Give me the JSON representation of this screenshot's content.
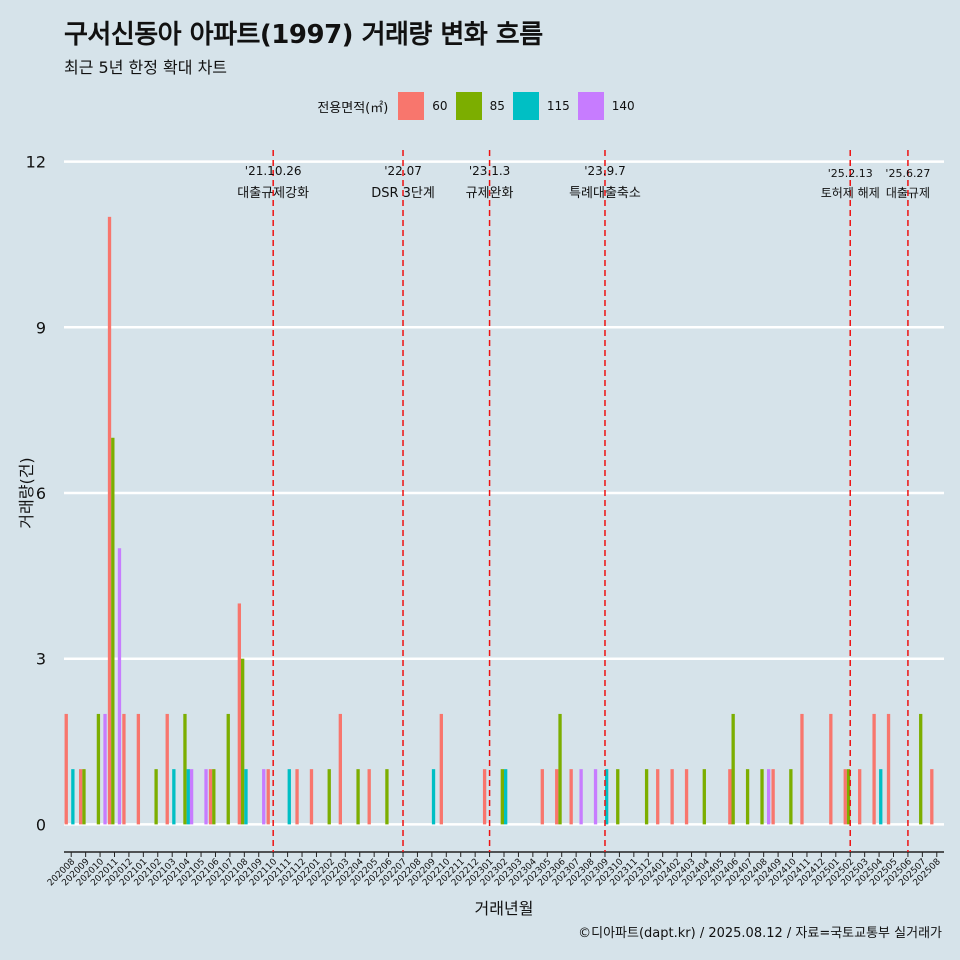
{
  "title": "구서신동아 아파트(1997) 거래량 변화 흐름",
  "subtitle": "최근 5년 한정 확대 차트",
  "legend_title": "전용면적(㎡)",
  "caption": "©디아파트(dapt.kr) / 2025.08.12 / 자료=국토교통부 실거래가",
  "chart_data": {
    "type": "bar",
    "xlabel": "거래년월",
    "ylabel": "거래량(건)",
    "ylim": [
      -0.5,
      12.5
    ],
    "yticks": [
      0,
      3,
      6,
      9,
      12
    ],
    "grid": true,
    "legend_position": "top",
    "categories": [
      "202008",
      "202009",
      "202010",
      "202011",
      "202012",
      "202101",
      "202102",
      "202103",
      "202104",
      "202105",
      "202106",
      "202107",
      "202108",
      "202109",
      "202110",
      "202111",
      "202112",
      "202201",
      "202202",
      "202203",
      "202204",
      "202205",
      "202206",
      "202207",
      "202208",
      "202209",
      "202210",
      "202211",
      "202212",
      "202301",
      "202302",
      "202303",
      "202304",
      "202305",
      "202306",
      "202307",
      "202308",
      "202309",
      "202310",
      "202311",
      "202312",
      "202401",
      "202402",
      "202403",
      "202404",
      "202405",
      "202406",
      "202407",
      "202408",
      "202409",
      "202410",
      "202411",
      "202412",
      "202501",
      "202502",
      "202503",
      "202504",
      "202505",
      "202506",
      "202507",
      "202508"
    ],
    "series": [
      {
        "name": "60",
        "color": "#f8766d",
        "values": [
          2,
          1,
          0,
          11,
          2,
          2,
          0,
          2,
          0,
          0,
          1,
          0,
          4,
          0,
          1,
          0,
          1,
          1,
          0,
          2,
          0,
          1,
          0,
          0,
          0,
          0,
          2,
          0,
          0,
          1,
          0,
          0,
          0,
          1,
          1,
          1,
          0,
          0,
          0,
          0,
          0,
          1,
          1,
          1,
          0,
          0,
          1,
          0,
          0,
          1,
          0,
          2,
          0,
          2,
          1,
          1,
          2,
          2,
          0,
          0,
          1
        ]
      },
      {
        "name": "85",
        "color": "#7cae00",
        "values": [
          0,
          1,
          2,
          7,
          0,
          0,
          1,
          0,
          2,
          0,
          1,
          2,
          3,
          0,
          0,
          0,
          0,
          0,
          1,
          0,
          1,
          0,
          1,
          0,
          0,
          0,
          0,
          0,
          0,
          0,
          1,
          0,
          0,
          0,
          2,
          0,
          0,
          0,
          1,
          0,
          1,
          0,
          0,
          0,
          1,
          0,
          2,
          1,
          1,
          0,
          1,
          0,
          0,
          0,
          1,
          0,
          0,
          0,
          0,
          2,
          0
        ]
      },
      {
        "name": "115",
        "color": "#00bfc4",
        "values": [
          1,
          0,
          0,
          0,
          0,
          0,
          0,
          1,
          1,
          0,
          0,
          0,
          1,
          0,
          0,
          1,
          0,
          0,
          0,
          0,
          0,
          0,
          0,
          0,
          0,
          1,
          0,
          0,
          0,
          0,
          1,
          0,
          0,
          0,
          0,
          0,
          0,
          1,
          0,
          0,
          0,
          0,
          0,
          0,
          0,
          0,
          0,
          0,
          0,
          0,
          0,
          0,
          0,
          0,
          0,
          0,
          1,
          0,
          0,
          0,
          0
        ]
      },
      {
        "name": "140",
        "color": "#c77cff",
        "values": [
          0,
          0,
          2,
          5,
          0,
          0,
          0,
          0,
          1,
          1,
          0,
          0,
          0,
          1,
          0,
          0,
          0,
          0,
          0,
          0,
          0,
          0,
          0,
          0,
          0,
          0,
          0,
          0,
          0,
          0,
          0,
          0,
          0,
          0,
          0,
          1,
          1,
          0,
          0,
          0,
          0,
          0,
          0,
          0,
          0,
          0,
          0,
          0,
          1,
          0,
          0,
          0,
          0,
          0,
          0,
          0,
          0,
          0,
          0,
          0,
          0
        ]
      }
    ],
    "events": [
      {
        "x": "202110",
        "date": "'21.10.26",
        "label": "대출규제강화"
      },
      {
        "x": "202207",
        "date": "'22.07",
        "label": "DSR 3단계"
      },
      {
        "x": "202301",
        "date": "'23.1.3",
        "label": "규제완화"
      },
      {
        "x": "202309",
        "date": "'23.9.7",
        "label": "특례대출축소"
      },
      {
        "x": "202502",
        "date": "'25.2.13",
        "label": "토허제 해제"
      },
      {
        "x": "202506",
        "date": "'25.6.27",
        "label": "대출규제"
      }
    ]
  }
}
